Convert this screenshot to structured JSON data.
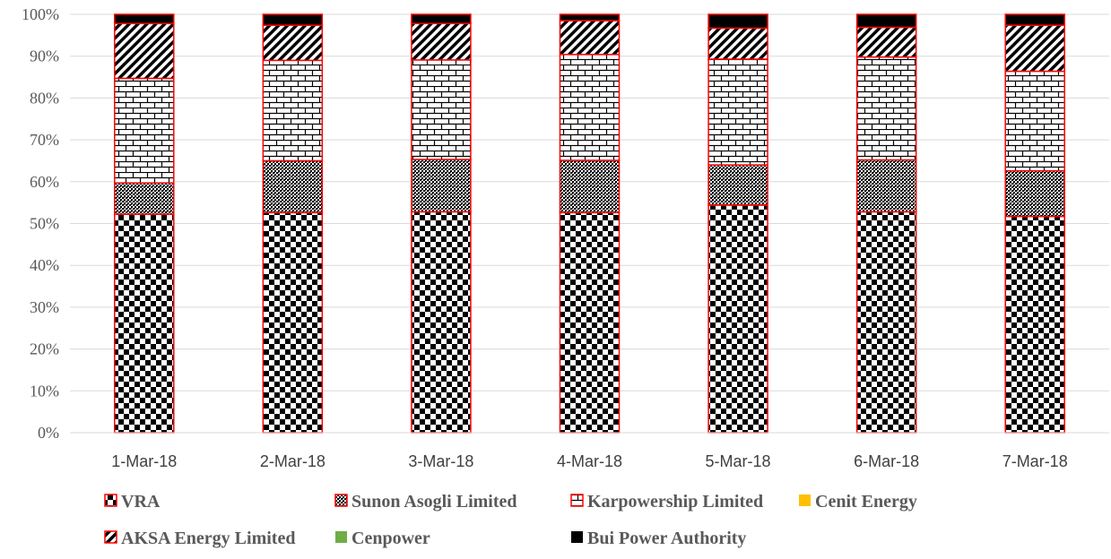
{
  "chart_data": {
    "type": "bar",
    "stacked": true,
    "percent_stacked": true,
    "title": "",
    "xlabel": "",
    "ylabel": "",
    "ylim": [
      0,
      100
    ],
    "y_ticks": [
      "0%",
      "10%",
      "20%",
      "30%",
      "40%",
      "50%",
      "60%",
      "70%",
      "80%",
      "90%",
      "100%"
    ],
    "grid": true,
    "legend_position": "bottom",
    "categories": [
      "1-Mar-18",
      "2-Mar-18",
      "3-Mar-18",
      "4-Mar-18",
      "5-Mar-18",
      "6-Mar-18",
      "7-Mar-18"
    ],
    "series": [
      {
        "name": "VRA",
        "pattern": "checker",
        "color": "#000000",
        "values": [
          52.2,
          52.6,
          52.8,
          52.6,
          54.4,
          52.8,
          51.7
        ]
      },
      {
        "name": "Sunon Asogli Limited",
        "pattern": "dense-dots",
        "color": "#000000",
        "values": [
          7.5,
          12.4,
          12.5,
          12.5,
          9.6,
          12.4,
          10.9
        ]
      },
      {
        "name": "Karpowership Limited",
        "pattern": "brick",
        "color": "#000000",
        "values": [
          25.0,
          24.0,
          23.8,
          25.3,
          25.3,
          24.6,
          23.8
        ]
      },
      {
        "name": "Cenit Energy",
        "pattern": "solid",
        "color": "#FFC000",
        "values": [
          0,
          0,
          0,
          0,
          0,
          0,
          0
        ]
      },
      {
        "name": "AKSA Energy Limited",
        "pattern": "diagonal",
        "color": "#000000",
        "values": [
          13.1,
          8.4,
          8.7,
          8.1,
          7.4,
          7.1,
          11.0
        ]
      },
      {
        "name": "Cenpower",
        "pattern": "solid",
        "color": "#70AD47",
        "values": [
          0,
          0,
          0,
          0,
          0,
          0,
          0
        ]
      },
      {
        "name": "Bui Power Authority",
        "pattern": "solid",
        "color": "#000000",
        "values": [
          2.2,
          2.6,
          2.2,
          1.5,
          3.3,
          3.1,
          2.6
        ]
      }
    ],
    "border_color": "#FF0000"
  }
}
